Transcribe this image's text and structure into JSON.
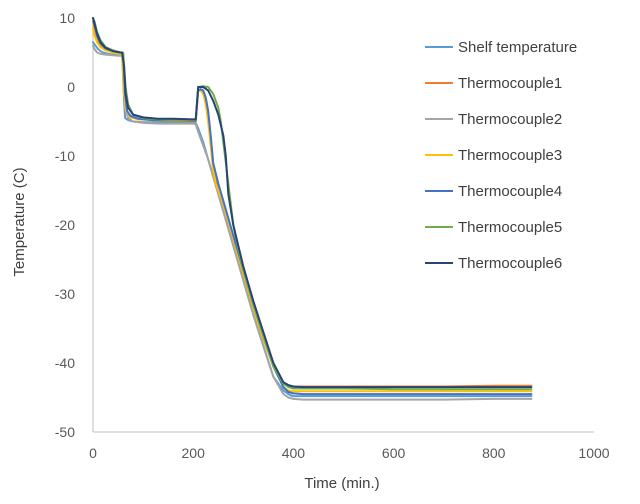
{
  "chart_data": {
    "type": "line",
    "title": "",
    "xlabel": "Time (min.)",
    "ylabel": "Temperature (C)",
    "xlim": [
      0,
      1000
    ],
    "ylim": [
      -50,
      10
    ],
    "xticks": [
      0,
      200,
      400,
      600,
      800,
      1000
    ],
    "yticks": [
      10,
      0,
      -10,
      -20,
      -30,
      -40,
      -50
    ],
    "grid": false,
    "legend_position": "right",
    "series": [
      {
        "name": "Shelf temperature",
        "color": "#5B9BD5",
        "x": [
          0,
          5,
          10,
          15,
          20,
          30,
          40,
          50,
          58,
          62,
          64,
          70,
          80,
          100,
          120,
          140,
          160,
          180,
          200,
          205,
          210,
          215,
          220,
          230,
          240,
          250,
          260,
          270,
          280,
          290,
          300,
          320,
          340,
          360,
          380,
          390,
          395,
          400,
          410,
          420,
          450,
          500,
          600,
          700,
          800,
          875
        ],
        "y": [
          6.5,
          6,
          5.5,
          5.2,
          5,
          4.8,
          4.7,
          4.6,
          4.6,
          -2,
          -4.5,
          -4.8,
          -5,
          -5.1,
          -5.1,
          -5.1,
          -5.1,
          -5.1,
          -5.2,
          -5.2,
          -6,
          -7,
          -8,
          -10.5,
          -13,
          -15.5,
          -18,
          -20.5,
          -23,
          -25.5,
          -28,
          -33,
          -37.5,
          -42,
          -44,
          -44.5,
          -44.7,
          -44.8,
          -44.8,
          -44.8,
          -44.8,
          -44.8,
          -44.8,
          -44.8,
          -44.8,
          -44.8
        ]
      },
      {
        "name": "Thermocouple1",
        "color": "#ED7D31",
        "x": [
          0,
          3,
          8,
          15,
          25,
          40,
          55,
          60,
          64,
          68,
          75,
          90,
          120,
          160,
          205,
          210,
          215,
          220,
          225,
          230,
          235,
          240,
          250,
          260,
          270,
          280,
          290,
          300,
          320,
          340,
          360,
          380,
          390,
          400,
          420,
          500,
          600,
          700,
          800,
          875
        ],
        "y": [
          9.5,
          8.5,
          7,
          6,
          5.5,
          5.2,
          5,
          4.8,
          -1,
          -3.5,
          -4.3,
          -4.6,
          -4.8,
          -4.9,
          -5,
          -0.5,
          -0.5,
          -0.8,
          -2,
          -4,
          -8,
          -12,
          -15,
          -17,
          -19.5,
          -22,
          -24.5,
          -27,
          -32,
          -36.5,
          -40.5,
          -43,
          -43.3,
          -43.4,
          -43.4,
          -43.4,
          -43.4,
          -43.4,
          -43.3,
          -43.3
        ]
      },
      {
        "name": "Thermocouple2",
        "color": "#A5A5A5",
        "x": [
          0,
          3,
          8,
          15,
          25,
          40,
          55,
          60,
          64,
          70,
          80,
          100,
          130,
          160,
          200,
          205,
          210,
          220,
          230,
          240,
          250,
          260,
          270,
          280,
          290,
          300,
          320,
          340,
          360,
          380,
          390,
          400,
          420,
          500,
          600,
          700,
          800,
          875
        ],
        "y": [
          6,
          5.5,
          5,
          4.8,
          4.7,
          4.6,
          4.5,
          4.5,
          -3,
          -4.5,
          -5,
          -5.2,
          -5.3,
          -5.3,
          -5.3,
          -5.4,
          -6.5,
          -8.5,
          -10.5,
          -13,
          -15.5,
          -18,
          -20.5,
          -23,
          -25.5,
          -28,
          -33,
          -37.5,
          -42,
          -44.5,
          -45,
          -45.2,
          -45.3,
          -45.3,
          -45.3,
          -45.3,
          -45.2,
          -45.2
        ]
      },
      {
        "name": "Thermocouple3",
        "color": "#FFC000",
        "x": [
          0,
          3,
          8,
          15,
          25,
          40,
          55,
          58,
          62,
          66,
          75,
          90,
          120,
          160,
          205,
          210,
          215,
          220,
          225,
          230,
          235,
          240,
          245,
          250,
          260,
          270,
          280,
          290,
          300,
          320,
          340,
          360,
          380,
          390,
          400,
          420,
          500,
          600,
          700,
          800,
          875
        ],
        "y": [
          8.5,
          7.5,
          6.5,
          5.8,
          5.3,
          5,
          4.8,
          4.8,
          -1,
          -3.5,
          -4.4,
          -4.7,
          -4.8,
          -4.8,
          -4.8,
          -0.5,
          -0.5,
          -1,
          -2.5,
          -5,
          -8.5,
          -12,
          -14,
          -15,
          -17,
          -19.5,
          -22,
          -24.5,
          -27,
          -32,
          -36.5,
          -40.5,
          -43.5,
          -44,
          -44.1,
          -44.1,
          -44.1,
          -44.1,
          -44.1,
          -44.1,
          -44.1
        ]
      },
      {
        "name": "Thermocouple4",
        "color": "#4472C4",
        "x": [
          0,
          3,
          8,
          15,
          25,
          40,
          55,
          60,
          64,
          68,
          75,
          90,
          120,
          160,
          205,
          210,
          215,
          220,
          225,
          230,
          235,
          240,
          250,
          260,
          270,
          280,
          290,
          300,
          320,
          340,
          360,
          380,
          390,
          400,
          420,
          500,
          600,
          700,
          800,
          875
        ],
        "y": [
          10,
          9,
          7.5,
          6.3,
          5.6,
          5.2,
          5,
          4.9,
          -1,
          -3.5,
          -4.2,
          -4.6,
          -4.8,
          -4.8,
          -4.9,
          -0.5,
          -0.3,
          -0.5,
          -1.5,
          -3.5,
          -7,
          -11,
          -14,
          -16.5,
          -19,
          -21.5,
          -24,
          -26.5,
          -31.5,
          -36,
          -40.5,
          -43.5,
          -44.2,
          -44.4,
          -44.5,
          -44.5,
          -44.5,
          -44.5,
          -44.5,
          -44.5
        ]
      },
      {
        "name": "Thermocouple5",
        "color": "#70AD47",
        "x": [
          0,
          3,
          8,
          15,
          25,
          40,
          55,
          58,
          60,
          62,
          65,
          70,
          80,
          100,
          130,
          160,
          200,
          205,
          210,
          220,
          230,
          240,
          250,
          255,
          260,
          265,
          270,
          280,
          290,
          300,
          320,
          340,
          360,
          380,
          390,
          400,
          420,
          500,
          600,
          700,
          800,
          875
        ],
        "y": [
          10,
          9.5,
          8,
          6.8,
          5.8,
          5.3,
          5,
          5,
          5,
          3,
          0,
          -2.5,
          -4,
          -4.5,
          -4.7,
          -4.8,
          -4.8,
          -4.8,
          0,
          0.1,
          0,
          -1,
          -3,
          -5,
          -8,
          -11,
          -14,
          -20,
          -23.5,
          -26.5,
          -31.5,
          -36,
          -40.5,
          -43,
          -43.5,
          -43.7,
          -43.7,
          -43.7,
          -43.8,
          -43.8,
          -43.8,
          -43.8
        ]
      },
      {
        "name": "Thermocouple6",
        "color": "#264478",
        "x": [
          0,
          3,
          8,
          15,
          25,
          40,
          55,
          58,
          62,
          65,
          70,
          80,
          100,
          130,
          160,
          200,
          205,
          210,
          220,
          230,
          240,
          250,
          260,
          265,
          270,
          280,
          290,
          300,
          320,
          340,
          360,
          380,
          390,
          400,
          420,
          500,
          600,
          700,
          800,
          875
        ],
        "y": [
          10,
          9.2,
          7.8,
          6.5,
          5.7,
          5.2,
          5,
          5,
          3,
          -1,
          -3,
          -4,
          -4.4,
          -4.6,
          -4.6,
          -4.7,
          -4.7,
          0,
          0,
          -0.5,
          -2,
          -4,
          -7,
          -10,
          -15.5,
          -20,
          -23,
          -26,
          -31,
          -35.5,
          -40,
          -42.8,
          -43.2,
          -43.4,
          -43.5,
          -43.5,
          -43.5,
          -43.5,
          -43.5,
          -43.5
        ]
      }
    ]
  }
}
